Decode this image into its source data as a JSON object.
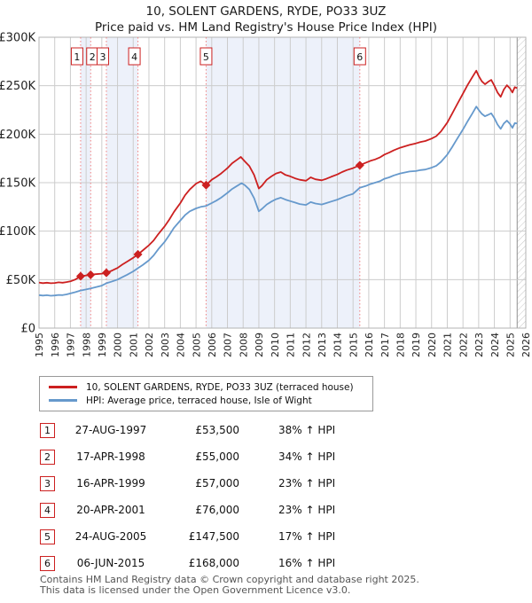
{
  "title": "10, SOLENT GARDENS, RYDE, PO33 3UZ",
  "subtitle": "Price paid vs. HM Land Registry's House Price Index (HPI)",
  "chart_data": {
    "type": "line",
    "title": "10, SOLENT GARDENS, RYDE, PO33 3UZ",
    "subtitle": "Price paid vs. HM Land Registry's House Price Index (HPI)",
    "xlim": [
      1995,
      2026
    ],
    "ylim": [
      0,
      300000
    ],
    "grid": true,
    "legend_position": "below",
    "band_color": "#edf1fa",
    "sale_line_color": "#f08080",
    "grid_color": "#cccccc",
    "future_shade_start": 2025.45,
    "ownership_bands": [
      [
        1997.65,
        1998.29
      ],
      [
        1999.29,
        2001.3
      ],
      [
        2005.64,
        2015.43
      ]
    ],
    "yticks": [
      {
        "value": 0,
        "label": "£0"
      },
      {
        "value": 50000,
        "label": "£50K"
      },
      {
        "value": 100000,
        "label": "£100K"
      },
      {
        "value": 150000,
        "label": "£150K"
      },
      {
        "value": 200000,
        "label": "£200K"
      },
      {
        "value": 250000,
        "label": "£250K"
      },
      {
        "value": 300000,
        "label": "£300K"
      }
    ],
    "xticks": [
      1995,
      1996,
      1997,
      1998,
      1999,
      2000,
      2001,
      2002,
      2003,
      2004,
      2005,
      2006,
      2007,
      2008,
      2009,
      2010,
      2011,
      2012,
      2013,
      2014,
      2015,
      2016,
      2017,
      2018,
      2019,
      2020,
      2021,
      2022,
      2023,
      2024,
      2025,
      2026
    ],
    "series": [
      {
        "name": "10, SOLENT GARDENS, RYDE, PO33 3UZ (terraced house)",
        "color": "#cc2020",
        "points": [
          [
            1995.0,
            47000
          ],
          [
            1995.25,
            46400
          ],
          [
            1995.5,
            46800
          ],
          [
            1995.75,
            46300
          ],
          [
            1996.0,
            46600
          ],
          [
            1996.25,
            47200
          ],
          [
            1996.5,
            46800
          ],
          [
            1996.75,
            47500
          ],
          [
            1997.0,
            48200
          ],
          [
            1997.3,
            50000
          ],
          [
            1997.65,
            53500
          ],
          [
            1998.0,
            54300
          ],
          [
            1998.29,
            55000
          ],
          [
            1998.6,
            55600
          ],
          [
            1999.0,
            56200
          ],
          [
            1999.29,
            57000
          ],
          [
            1999.6,
            59000
          ],
          [
            2000.0,
            62000
          ],
          [
            2000.3,
            65500
          ],
          [
            2000.6,
            68500
          ],
          [
            2001.0,
            72500
          ],
          [
            2001.3,
            76000
          ],
          [
            2001.6,
            80000
          ],
          [
            2002.0,
            85500
          ],
          [
            2002.3,
            90500
          ],
          [
            2002.6,
            97000
          ],
          [
            2003.0,
            105000
          ],
          [
            2003.3,
            112000
          ],
          [
            2003.6,
            120000
          ],
          [
            2004.0,
            129000
          ],
          [
            2004.3,
            137000
          ],
          [
            2004.6,
            143000
          ],
          [
            2005.0,
            149000
          ],
          [
            2005.3,
            151500
          ],
          [
            2005.64,
            147500
          ],
          [
            2006.0,
            153000
          ],
          [
            2006.3,
            156000
          ],
          [
            2006.6,
            159500
          ],
          [
            2007.0,
            165000
          ],
          [
            2007.3,
            170000
          ],
          [
            2007.6,
            173500
          ],
          [
            2007.85,
            176500
          ],
          [
            2008.1,
            172000
          ],
          [
            2008.4,
            167000
          ],
          [
            2008.7,
            158000
          ],
          [
            2009.0,
            144000
          ],
          [
            2009.2,
            147000
          ],
          [
            2009.5,
            153000
          ],
          [
            2009.8,
            156500
          ],
          [
            2010.1,
            159500
          ],
          [
            2010.4,
            161000
          ],
          [
            2010.7,
            158000
          ],
          [
            2011.0,
            156500
          ],
          [
            2011.3,
            154500
          ],
          [
            2011.6,
            153000
          ],
          [
            2012.0,
            152000
          ],
          [
            2012.3,
            155500
          ],
          [
            2012.6,
            153500
          ],
          [
            2013.0,
            152500
          ],
          [
            2013.3,
            154000
          ],
          [
            2013.6,
            156000
          ],
          [
            2014.0,
            158500
          ],
          [
            2014.3,
            161000
          ],
          [
            2014.6,
            163000
          ],
          [
            2015.0,
            165000
          ],
          [
            2015.43,
            168000
          ],
          [
            2015.8,
            170500
          ],
          [
            2016.1,
            172500
          ],
          [
            2016.4,
            174000
          ],
          [
            2016.7,
            176000
          ],
          [
            2017.0,
            179000
          ],
          [
            2017.3,
            181000
          ],
          [
            2017.6,
            183500
          ],
          [
            2018.0,
            186000
          ],
          [
            2018.3,
            187500
          ],
          [
            2018.6,
            189000
          ],
          [
            2019.0,
            190500
          ],
          [
            2019.3,
            192000
          ],
          [
            2019.6,
            193000
          ],
          [
            2020.0,
            195500
          ],
          [
            2020.3,
            198000
          ],
          [
            2020.6,
            203000
          ],
          [
            2021.0,
            212000
          ],
          [
            2021.3,
            221000
          ],
          [
            2021.6,
            230000
          ],
          [
            2022.0,
            242000
          ],
          [
            2022.3,
            251000
          ],
          [
            2022.6,
            259000
          ],
          [
            2022.85,
            265500
          ],
          [
            2023.0,
            260000
          ],
          [
            2023.2,
            254500
          ],
          [
            2023.4,
            251500
          ],
          [
            2023.6,
            254000
          ],
          [
            2023.8,
            256000
          ],
          [
            2024.0,
            250000
          ],
          [
            2024.2,
            243000
          ],
          [
            2024.4,
            238500
          ],
          [
            2024.6,
            246000
          ],
          [
            2024.8,
            250500
          ],
          [
            2025.0,
            247000
          ],
          [
            2025.15,
            243000
          ],
          [
            2025.3,
            248500
          ],
          [
            2025.45,
            247500
          ]
        ]
      },
      {
        "name": "HPI: Average price, terraced house, Isle of Wight",
        "color": "#6699cc",
        "points": [
          [
            1995.0,
            34000
          ],
          [
            1995.25,
            33600
          ],
          [
            1995.5,
            33900
          ],
          [
            1995.75,
            33400
          ],
          [
            1996.0,
            33700
          ],
          [
            1996.25,
            34200
          ],
          [
            1996.5,
            34000
          ],
          [
            1996.75,
            34800
          ],
          [
            1997.0,
            35800
          ],
          [
            1997.3,
            37000
          ],
          [
            1997.65,
            38800
          ],
          [
            1998.0,
            39900
          ],
          [
            1998.29,
            41000
          ],
          [
            1998.6,
            42200
          ],
          [
            1999.0,
            43800
          ],
          [
            1999.29,
            46300
          ],
          [
            1999.6,
            47800
          ],
          [
            2000.0,
            50000
          ],
          [
            2000.3,
            52500
          ],
          [
            2000.6,
            55000
          ],
          [
            2001.0,
            58500
          ],
          [
            2001.3,
            61800
          ],
          [
            2001.6,
            65000
          ],
          [
            2002.0,
            70000
          ],
          [
            2002.3,
            75000
          ],
          [
            2002.6,
            81500
          ],
          [
            2003.0,
            89000
          ],
          [
            2003.3,
            96000
          ],
          [
            2003.6,
            103500
          ],
          [
            2004.0,
            111000
          ],
          [
            2004.3,
            116500
          ],
          [
            2004.6,
            120500
          ],
          [
            2005.0,
            123500
          ],
          [
            2005.3,
            125000
          ],
          [
            2005.64,
            126000
          ],
          [
            2006.0,
            129000
          ],
          [
            2006.3,
            131500
          ],
          [
            2006.6,
            134500
          ],
          [
            2007.0,
            139500
          ],
          [
            2007.3,
            143500
          ],
          [
            2007.6,
            146500
          ],
          [
            2007.9,
            149500
          ],
          [
            2008.1,
            147500
          ],
          [
            2008.4,
            143000
          ],
          [
            2008.7,
            134000
          ],
          [
            2009.0,
            120500
          ],
          [
            2009.2,
            123000
          ],
          [
            2009.5,
            127500
          ],
          [
            2009.8,
            130500
          ],
          [
            2010.1,
            133000
          ],
          [
            2010.4,
            134500
          ],
          [
            2010.7,
            132500
          ],
          [
            2011.0,
            131000
          ],
          [
            2011.3,
            129500
          ],
          [
            2011.6,
            128000
          ],
          [
            2012.0,
            127000
          ],
          [
            2012.3,
            130000
          ],
          [
            2012.6,
            128500
          ],
          [
            2013.0,
            127500
          ],
          [
            2013.3,
            129000
          ],
          [
            2013.6,
            130500
          ],
          [
            2014.0,
            132500
          ],
          [
            2014.3,
            134500
          ],
          [
            2014.6,
            136500
          ],
          [
            2015.0,
            138500
          ],
          [
            2015.43,
            144800
          ],
          [
            2015.8,
            146500
          ],
          [
            2016.1,
            148500
          ],
          [
            2016.4,
            150000
          ],
          [
            2016.7,
            151500
          ],
          [
            2017.0,
            154000
          ],
          [
            2017.3,
            155500
          ],
          [
            2017.6,
            157500
          ],
          [
            2018.0,
            159500
          ],
          [
            2018.3,
            160500
          ],
          [
            2018.6,
            161500
          ],
          [
            2019.0,
            162000
          ],
          [
            2019.3,
            163000
          ],
          [
            2019.6,
            163500
          ],
          [
            2020.0,
            165500
          ],
          [
            2020.3,
            167500
          ],
          [
            2020.6,
            171500
          ],
          [
            2021.0,
            179000
          ],
          [
            2021.3,
            186500
          ],
          [
            2021.6,
            194500
          ],
          [
            2022.0,
            205000
          ],
          [
            2022.3,
            213500
          ],
          [
            2022.6,
            221500
          ],
          [
            2022.85,
            228500
          ],
          [
            2023.0,
            225000
          ],
          [
            2023.2,
            221000
          ],
          [
            2023.4,
            218500
          ],
          [
            2023.6,
            220000
          ],
          [
            2023.8,
            221500
          ],
          [
            2024.0,
            216500
          ],
          [
            2024.2,
            210000
          ],
          [
            2024.4,
            205500
          ],
          [
            2024.6,
            211000
          ],
          [
            2024.8,
            214000
          ],
          [
            2025.0,
            210500
          ],
          [
            2025.15,
            206500
          ],
          [
            2025.3,
            211500
          ],
          [
            2025.45,
            211000
          ]
        ]
      }
    ]
  },
  "transactions": [
    {
      "num": "1",
      "date": "27-AUG-1997",
      "price": "£53,500",
      "price_value": 53500,
      "year": 1997.65,
      "hpi_delta": "38% ↑ HPI"
    },
    {
      "num": "2",
      "date": "17-APR-1998",
      "price": "£55,000",
      "price_value": 55000,
      "year": 1998.29,
      "hpi_delta": "34% ↑ HPI"
    },
    {
      "num": "3",
      "date": "16-APR-1999",
      "price": "£57,000",
      "price_value": 57000,
      "year": 1999.29,
      "hpi_delta": "23% ↑ HPI"
    },
    {
      "num": "4",
      "date": "20-APR-2001",
      "price": "£76,000",
      "price_value": 76000,
      "year": 2001.3,
      "hpi_delta": "23% ↑ HPI"
    },
    {
      "num": "5",
      "date": "24-AUG-2005",
      "price": "£147,500",
      "price_value": 147500,
      "year": 2005.64,
      "hpi_delta": "17% ↑ HPI"
    },
    {
      "num": "6",
      "date": "06-JUN-2015",
      "price": "£168,000",
      "price_value": 168000,
      "year": 2015.43,
      "hpi_delta": "16% ↑ HPI"
    }
  ],
  "footer": {
    "line1": "Contains HM Land Registry data © Crown copyright and database right 2025.",
    "line2": "This data is licensed under the Open Government Licence v3.0."
  }
}
